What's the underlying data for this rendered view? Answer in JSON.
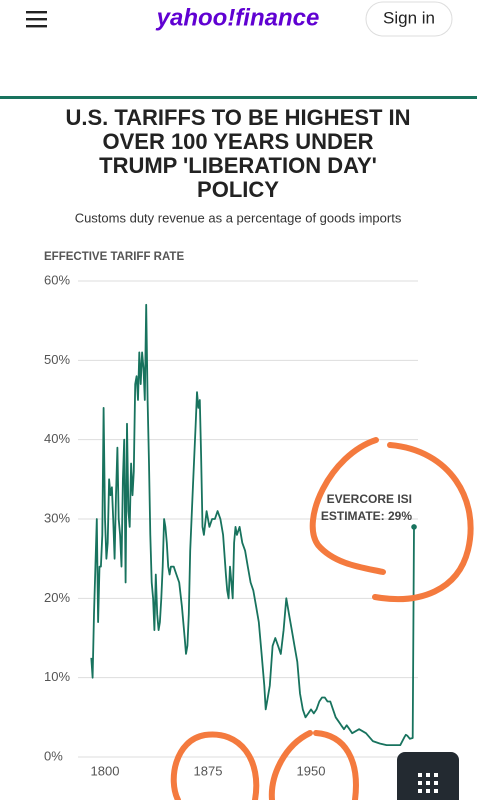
{
  "header": {
    "logo": "yahoo!finance",
    "sign_in": "Sign in"
  },
  "chart_data": {
    "type": "line",
    "title": [
      "U.S. TARIFFS TO BE HIGHEST IN",
      "OVER 100 YEARS UNDER",
      "TRUMP 'LIBERATION DAY'",
      "POLICY"
    ],
    "subtitle": "Customs duty revenue as a percentage of goods imports",
    "y_label": "EFFECTIVE TARIFF RATE",
    "annotation": [
      "EVERCORE ISI",
      "ESTIMATE: 29%"
    ],
    "xlim": [
      1785,
      2030
    ],
    "xticks": [
      1800,
      1875,
      1950
    ],
    "ylim": [
      0,
      60
    ],
    "yticks": [
      {
        "value": 0,
        "label": "0%"
      },
      {
        "value": 10,
        "label": "10%"
      },
      {
        "value": 20,
        "label": "20%"
      },
      {
        "value": 30,
        "label": "30%"
      },
      {
        "value": 40,
        "label": "40%"
      },
      {
        "value": 50,
        "label": "50%"
      },
      {
        "value": 60,
        "label": "60%"
      }
    ],
    "grid": true,
    "color": "#18735e",
    "x": [
      1790,
      1791,
      1792,
      1793,
      1794,
      1795,
      1796,
      1797,
      1798,
      1799,
      1800,
      1801,
      1802,
      1803,
      1804,
      1805,
      1806,
      1807,
      1808,
      1809,
      1810,
      1811,
      1812,
      1813,
      1814,
      1815,
      1816,
      1817,
      1818,
      1819,
      1820,
      1821,
      1822,
      1823,
      1824,
      1825,
      1826,
      1827,
      1828,
      1829,
      1830,
      1831,
      1832,
      1833,
      1834,
      1835,
      1836,
      1837,
      1838,
      1839,
      1840,
      1841,
      1842,
      1843,
      1844,
      1845,
      1846,
      1847,
      1848,
      1850,
      1852,
      1854,
      1856,
      1858,
      1859,
      1860,
      1861,
      1862,
      1864,
      1866,
      1867,
      1868,
      1869,
      1870,
      1871,
      1872,
      1874,
      1876,
      1878,
      1880,
      1882,
      1884,
      1886,
      1888,
      1889,
      1890,
      1891,
      1892,
      1893,
      1894,
      1895,
      1896,
      1898,
      1900,
      1902,
      1904,
      1906,
      1908,
      1910,
      1912,
      1914,
      1916,
      1917,
      1918,
      1920,
      1922,
      1924,
      1926,
      1928,
      1930,
      1932,
      1934,
      1936,
      1938,
      1940,
      1942,
      1944,
      1946,
      1948,
      1950,
      1952,
      1954,
      1956,
      1958,
      1960,
      1962,
      1964,
      1966,
      1968,
      1970,
      1972,
      1974,
      1976,
      1978,
      1980,
      1985,
      1990,
      1995,
      2000,
      2005,
      2010,
      2015,
      2018,
      2019,
      2020,
      2022,
      2024,
      2025
    ],
    "values": [
      12.5,
      10,
      18,
      24,
      30,
      17,
      24,
      24,
      28,
      44,
      30,
      25,
      27,
      35,
      33,
      34,
      30,
      25,
      33,
      39,
      30,
      28,
      24,
      35,
      40,
      22,
      42,
      31,
      29,
      37,
      33,
      36,
      47,
      48,
      45,
      51,
      47,
      51,
      49,
      45,
      57,
      45,
      37,
      28,
      22,
      20,
      16,
      23,
      18,
      16,
      17,
      20,
      24,
      30,
      29,
      27,
      24,
      23,
      24,
      24,
      23,
      22,
      19,
      15,
      13,
      14,
      18,
      26,
      34,
      42,
      46,
      44,
      45,
      38,
      29,
      28,
      31,
      29,
      30,
      30,
      31,
      30,
      28,
      23,
      21,
      20,
      24,
      22,
      20,
      27,
      29,
      28,
      29,
      27,
      26,
      24,
      22,
      21,
      19,
      17,
      13,
      9,
      6,
      7,
      9,
      14,
      15,
      14,
      13,
      16,
      20,
      18,
      16,
      14,
      12,
      8,
      6,
      5,
      5.5,
      6,
      5.5,
      6,
      7,
      7.5,
      7.5,
      7,
      7,
      6,
      5,
      4.5,
      4,
      3.5,
      4,
      3.5,
      3,
      3.5,
      3,
      2,
      1.7,
      1.5,
      1.5,
      1.5,
      2.5,
      2.8,
      2.7,
      2.3,
      2.4,
      29
    ]
  }
}
